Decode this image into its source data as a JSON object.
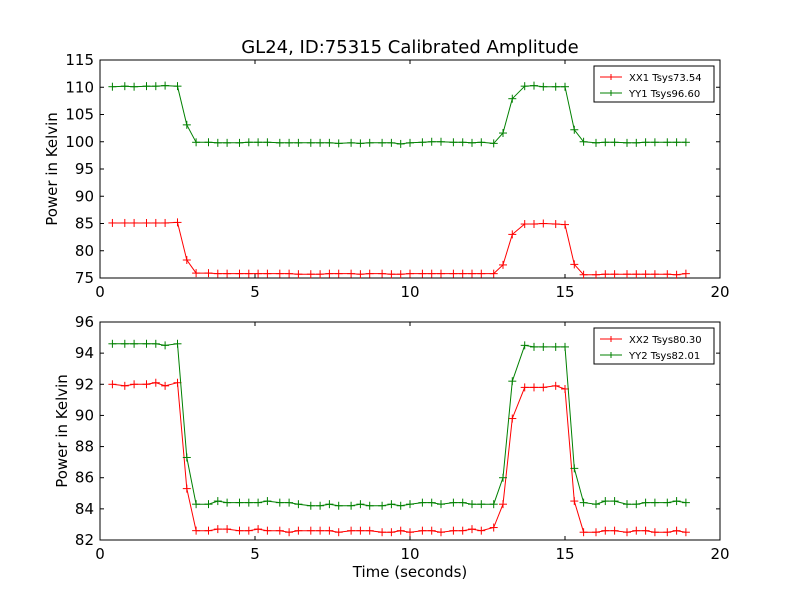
{
  "title": "GL24, ID:75315 Calibrated Amplitude",
  "colors": {
    "xx": "#ff0000",
    "yy": "#008000"
  },
  "chart_data": [
    {
      "type": "line",
      "title": "GL24, ID:75315 Calibrated Amplitude",
      "xlabel": "",
      "ylabel": "Power in Kelvin",
      "xlim": [
        0,
        20
      ],
      "ylim": [
        75,
        115
      ],
      "xticks": [
        0,
        5,
        10,
        15,
        20
      ],
      "yticks": [
        75,
        80,
        85,
        90,
        95,
        100,
        105,
        110,
        115
      ],
      "legend_position": "top-right",
      "x": [
        0.4,
        0.8,
        1.1,
        1.5,
        1.8,
        2.1,
        2.5,
        2.8,
        3.1,
        3.5,
        3.8,
        4.1,
        4.5,
        4.8,
        5.1,
        5.4,
        5.8,
        6.1,
        6.4,
        6.8,
        7.1,
        7.4,
        7.7,
        8.1,
        8.4,
        8.7,
        9.1,
        9.4,
        9.7,
        10.0,
        10.4,
        10.7,
        11.0,
        11.4,
        11.7,
        12.0,
        12.3,
        12.7,
        13.0,
        13.3,
        13.7,
        14.0,
        14.3,
        14.7,
        15.0,
        15.3,
        15.6,
        16.0,
        16.3,
        16.6,
        17.0,
        17.3,
        17.6,
        17.9,
        18.3,
        18.6,
        18.9
      ],
      "series": [
        {
          "name": "XX1 Tsys73.54",
          "color": "#ff0000",
          "values": [
            85.1,
            85.1,
            85.1,
            85.1,
            85.1,
            85.1,
            85.2,
            78.3,
            75.9,
            75.9,
            75.8,
            75.8,
            75.8,
            75.8,
            75.8,
            75.8,
            75.8,
            75.8,
            75.7,
            75.7,
            75.7,
            75.8,
            75.8,
            75.8,
            75.7,
            75.8,
            75.8,
            75.7,
            75.7,
            75.8,
            75.8,
            75.8,
            75.8,
            75.8,
            75.8,
            75.8,
            75.8,
            75.8,
            77.4,
            83.0,
            84.9,
            84.9,
            85.0,
            84.9,
            84.8,
            77.5,
            75.6,
            75.6,
            75.7,
            75.7,
            75.7,
            75.7,
            75.7,
            75.7,
            75.7,
            75.6,
            75.8
          ]
        },
        {
          "name": "YY1 Tsys96.60",
          "color": "#008000",
          "values": [
            110.1,
            110.2,
            110.1,
            110.2,
            110.2,
            110.3,
            110.2,
            103.1,
            99.9,
            99.9,
            99.8,
            99.8,
            99.8,
            99.9,
            99.9,
            99.9,
            99.8,
            99.8,
            99.8,
            99.8,
            99.8,
            99.8,
            99.7,
            99.8,
            99.7,
            99.8,
            99.8,
            99.8,
            99.6,
            99.8,
            99.9,
            100.0,
            100.0,
            99.9,
            99.9,
            99.8,
            99.9,
            99.7,
            101.6,
            107.9,
            110.2,
            110.3,
            110.1,
            110.1,
            110.1,
            102.2,
            100.0,
            99.8,
            99.9,
            99.9,
            99.8,
            99.8,
            99.9,
            99.9,
            99.9,
            99.9,
            99.9
          ]
        }
      ]
    },
    {
      "type": "line",
      "title": "",
      "xlabel": "Time (seconds)",
      "ylabel": "Power in Kelvin",
      "xlim": [
        0,
        20
      ],
      "ylim": [
        82,
        96
      ],
      "xticks": [
        0,
        5,
        10,
        15,
        20
      ],
      "yticks": [
        82,
        84,
        86,
        88,
        90,
        92,
        94,
        96
      ],
      "legend_position": "top-right",
      "x": [
        0.4,
        0.8,
        1.1,
        1.5,
        1.8,
        2.1,
        2.5,
        2.8,
        3.1,
        3.5,
        3.8,
        4.1,
        4.5,
        4.8,
        5.1,
        5.4,
        5.8,
        6.1,
        6.4,
        6.8,
        7.1,
        7.4,
        7.7,
        8.1,
        8.4,
        8.7,
        9.1,
        9.4,
        9.7,
        10.0,
        10.4,
        10.7,
        11.0,
        11.4,
        11.7,
        12.0,
        12.3,
        12.7,
        13.0,
        13.3,
        13.7,
        14.0,
        14.3,
        14.7,
        15.0,
        15.3,
        15.6,
        16.0,
        16.3,
        16.6,
        17.0,
        17.3,
        17.6,
        17.9,
        18.3,
        18.6,
        18.9
      ],
      "series": [
        {
          "name": "XX2 Tsys80.30",
          "color": "#ff0000",
          "values": [
            92.0,
            91.9,
            92.0,
            92.0,
            92.1,
            91.9,
            92.1,
            85.3,
            82.6,
            82.6,
            82.7,
            82.7,
            82.6,
            82.6,
            82.7,
            82.6,
            82.6,
            82.5,
            82.6,
            82.6,
            82.6,
            82.6,
            82.5,
            82.6,
            82.6,
            82.6,
            82.5,
            82.5,
            82.6,
            82.5,
            82.6,
            82.6,
            82.5,
            82.6,
            82.6,
            82.7,
            82.6,
            82.8,
            84.3,
            89.8,
            91.8,
            91.8,
            91.8,
            91.9,
            91.7,
            84.5,
            82.5,
            82.5,
            82.6,
            82.6,
            82.5,
            82.6,
            82.6,
            82.5,
            82.5,
            82.6,
            82.5
          ]
        },
        {
          "name": "YY2 Tsys82.01",
          "color": "#008000",
          "values": [
            94.6,
            94.6,
            94.6,
            94.6,
            94.6,
            94.5,
            94.6,
            87.3,
            84.3,
            84.3,
            84.5,
            84.4,
            84.4,
            84.4,
            84.4,
            84.5,
            84.4,
            84.4,
            84.3,
            84.2,
            84.2,
            84.3,
            84.2,
            84.2,
            84.3,
            84.2,
            84.2,
            84.3,
            84.2,
            84.3,
            84.4,
            84.4,
            84.3,
            84.4,
            84.4,
            84.3,
            84.3,
            84.3,
            86.0,
            92.2,
            94.5,
            94.4,
            94.4,
            94.4,
            94.4,
            86.6,
            84.4,
            84.3,
            84.5,
            84.5,
            84.3,
            84.3,
            84.4,
            84.4,
            84.4,
            84.5,
            84.4
          ]
        }
      ]
    }
  ]
}
